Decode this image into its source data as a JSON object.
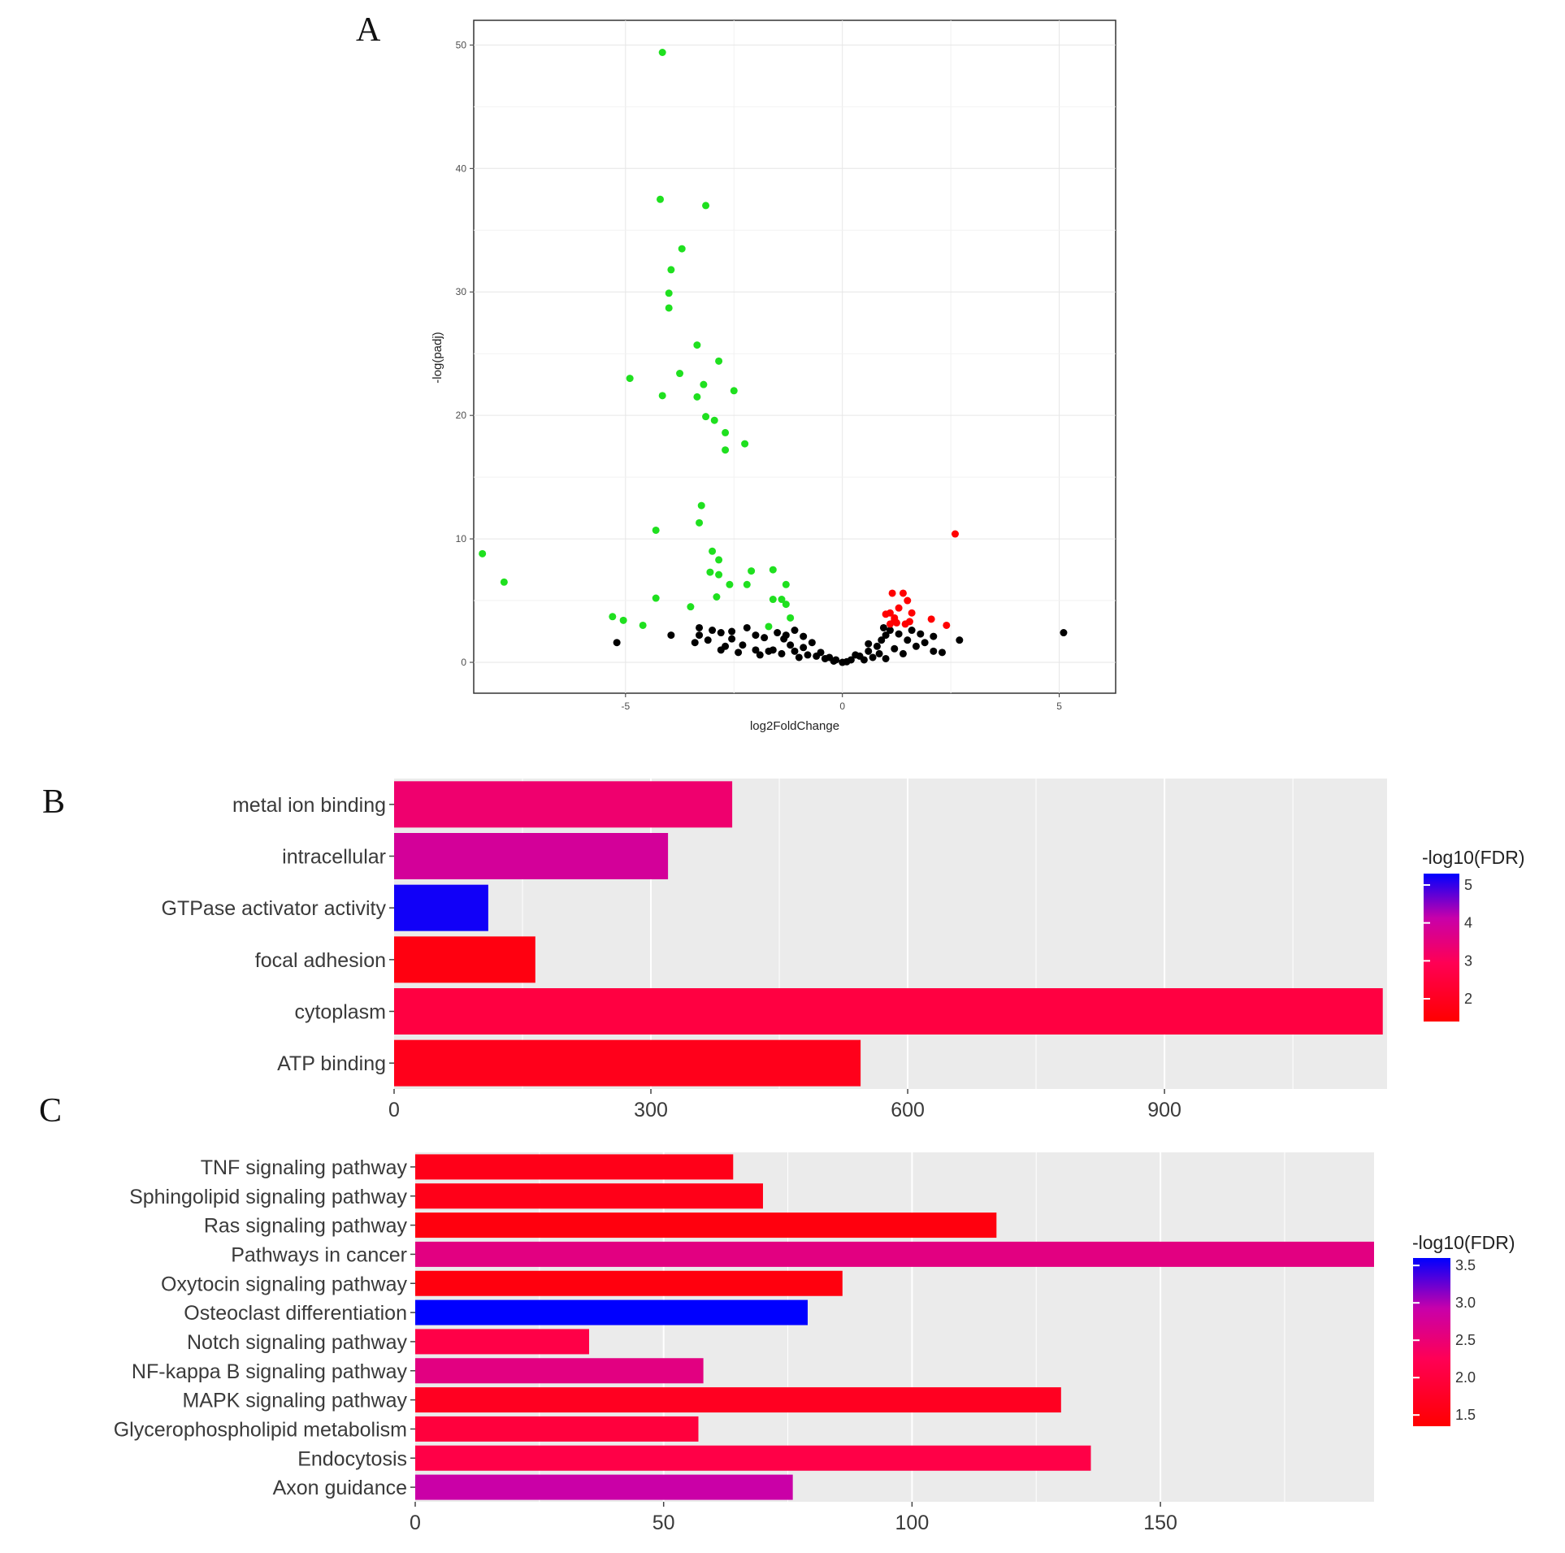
{
  "panels": {
    "a": "A",
    "b": "B",
    "c": "C"
  },
  "colors": {
    "down": "#1fe01f",
    "up": "#ff0000",
    "ns": "#000000",
    "low_fdr": "#ff0000",
    "high_fdr": "#0000ff"
  },
  "chart_data": [
    {
      "id": "volcano",
      "type": "scatter",
      "xlabel": "log2FoldChange",
      "ylabel": "-log(padj)",
      "xlim": [
        -8.5,
        6.3
      ],
      "ylim": [
        -2.5,
        52
      ],
      "xticks": [
        -5,
        0,
        5
      ],
      "yticks": [
        0,
        10,
        20,
        30,
        40,
        50
      ],
      "grid": true,
      "series": [
        {
          "group": "down",
          "color": "#1fe01f",
          "points": [
            [
              -4.15,
              49.4
            ],
            [
              -4.2,
              37.5
            ],
            [
              -3.15,
              37.0
            ],
            [
              -3.7,
              33.5
            ],
            [
              -3.95,
              31.8
            ],
            [
              -4.0,
              29.9
            ],
            [
              -4.0,
              28.7
            ],
            [
              -3.35,
              25.7
            ],
            [
              -2.85,
              24.4
            ],
            [
              -3.75,
              23.4
            ],
            [
              -4.9,
              23.0
            ],
            [
              -3.2,
              22.5
            ],
            [
              -2.5,
              22.0
            ],
            [
              -4.15,
              21.6
            ],
            [
              -3.35,
              21.5
            ],
            [
              -3.15,
              19.9
            ],
            [
              -2.95,
              19.6
            ],
            [
              -2.7,
              18.6
            ],
            [
              -2.25,
              17.7
            ],
            [
              -2.7,
              17.2
            ],
            [
              -3.25,
              12.7
            ],
            [
              -3.3,
              11.3
            ],
            [
              -4.3,
              10.7
            ],
            [
              -8.3,
              8.8
            ],
            [
              -3.0,
              9.0
            ],
            [
              -2.85,
              8.3
            ],
            [
              -2.1,
              7.4
            ],
            [
              -1.6,
              7.5
            ],
            [
              -3.05,
              7.3
            ],
            [
              -2.85,
              7.1
            ],
            [
              -7.8,
              6.5
            ],
            [
              -2.2,
              6.3
            ],
            [
              -2.6,
              6.3
            ],
            [
              -1.3,
              6.3
            ],
            [
              -4.3,
              5.2
            ],
            [
              -2.9,
              5.3
            ],
            [
              -1.6,
              5.1
            ],
            [
              -1.4,
              5.1
            ],
            [
              -1.3,
              4.7
            ],
            [
              -3.5,
              4.5
            ],
            [
              -5.3,
              3.7
            ],
            [
              -5.05,
              3.4
            ],
            [
              -1.2,
              3.6
            ],
            [
              -4.6,
              3.0
            ],
            [
              -1.7,
              2.9
            ]
          ]
        },
        {
          "group": "up",
          "color": "#ff0000",
          "points": [
            [
              2.6,
              10.4
            ],
            [
              1.15,
              5.6
            ],
            [
              1.4,
              5.6
            ],
            [
              1.5,
              5.0
            ],
            [
              1.3,
              4.4
            ],
            [
              1.1,
              4.0
            ],
            [
              1.6,
              4.0
            ],
            [
              1.0,
              3.9
            ],
            [
              1.2,
              3.6
            ],
            [
              1.2,
              3.4
            ],
            [
              1.25,
              3.2
            ],
            [
              1.55,
              3.3
            ],
            [
              2.05,
              3.5
            ],
            [
              2.4,
              3.0
            ],
            [
              1.1,
              3.1
            ],
            [
              1.45,
              3.1
            ]
          ]
        },
        {
          "group": "ns",
          "color": "#000000",
          "points": [
            [
              5.1,
              2.4
            ],
            [
              -5.2,
              1.6
            ],
            [
              -3.95,
              2.2
            ],
            [
              -3.3,
              2.8
            ],
            [
              -3.3,
              2.2
            ],
            [
              -3.4,
              1.6
            ],
            [
              -3.0,
              2.6
            ],
            [
              -2.8,
              2.4
            ],
            [
              -2.55,
              2.5
            ],
            [
              -2.2,
              2.8
            ],
            [
              -2.0,
              2.2
            ],
            [
              -1.8,
              2.0
            ],
            [
              -1.5,
              2.4
            ],
            [
              -1.3,
              2.2
            ],
            [
              -1.1,
              2.6
            ],
            [
              -0.9,
              2.1
            ],
            [
              -0.7,
              1.6
            ],
            [
              -3.1,
              1.8
            ],
            [
              -2.7,
              1.3
            ],
            [
              -2.3,
              1.4
            ],
            [
              -2.0,
              1.0
            ],
            [
              -1.7,
              0.9
            ],
            [
              -1.4,
              0.7
            ],
            [
              -1.1,
              0.9
            ],
            [
              -0.8,
              0.6
            ],
            [
              -0.6,
              0.5
            ],
            [
              -0.4,
              0.3
            ],
            [
              -0.2,
              0.1
            ],
            [
              0.0,
              0.0
            ],
            [
              0.2,
              0.2
            ],
            [
              0.4,
              0.5
            ],
            [
              0.6,
              0.9
            ],
            [
              0.8,
              1.3
            ],
            [
              0.9,
              1.8
            ],
            [
              1.0,
              2.2
            ],
            [
              1.1,
              2.6
            ],
            [
              1.3,
              2.3
            ],
            [
              1.5,
              1.8
            ],
            [
              1.7,
              1.3
            ],
            [
              1.9,
              1.6
            ],
            [
              2.1,
              0.9
            ],
            [
              2.3,
              0.8
            ],
            [
              2.7,
              1.8
            ],
            [
              2.1,
              2.1
            ],
            [
              1.6,
              2.6
            ],
            [
              1.2,
              1.1
            ],
            [
              1.4,
              0.7
            ],
            [
              0.7,
              0.4
            ],
            [
              0.5,
              0.2
            ],
            [
              -0.3,
              0.4
            ],
            [
              -0.5,
              0.8
            ],
            [
              -0.9,
              1.2
            ],
            [
              -1.2,
              1.4
            ],
            [
              -1.6,
              1.0
            ],
            [
              -1.9,
              0.6
            ],
            [
              -2.4,
              0.8
            ],
            [
              -2.8,
              1.0
            ],
            [
              -1.0,
              0.4
            ],
            [
              0.3,
              0.6
            ],
            [
              0.6,
              1.5
            ],
            [
              0.95,
              2.8
            ],
            [
              1.0,
              0.3
            ],
            [
              -0.15,
              0.2
            ],
            [
              0.1,
              0.05
            ],
            [
              -1.35,
              1.9
            ],
            [
              -2.55,
              1.9
            ],
            [
              1.8,
              2.3
            ],
            [
              0.85,
              0.7
            ]
          ]
        }
      ]
    },
    {
      "id": "go",
      "type": "bar",
      "orientation": "horizontal",
      "categories": [
        "metal ion binding",
        "intracellular",
        "GTPase activator activity",
        "focal adhesion",
        "cytoplasm",
        "ATP binding"
      ],
      "values": [
        395,
        320,
        110,
        165,
        1155,
        545
      ],
      "fdr": [
        3.3,
        3.9,
        5.2,
        1.7,
        2.6,
        1.9
      ],
      "xticks": [
        0,
        300,
        600,
        900
      ],
      "xlim": [
        0,
        1160
      ],
      "legend": {
        "title": "-log10(FDR)",
        "min": 1.4,
        "max": 5.3,
        "ticks": [
          "5",
          "4",
          "3",
          "2"
        ],
        "tick_values": [
          5,
          4,
          3,
          2
        ],
        "position": "right"
      }
    },
    {
      "id": "kegg",
      "type": "bar",
      "orientation": "horizontal",
      "categories": [
        "TNF signaling pathway",
        "Sphingolipid signaling pathway",
        "Ras signaling pathway",
        "Pathways in cancer",
        "Oxytocin signaling pathway",
        "Osteoclast differentiation",
        "Notch signaling pathway",
        "NF-kappa B signaling pathway",
        "MAPK signaling pathway",
        "Glycerophospholipid metabolism",
        "Endocytosis",
        "Axon guidance"
      ],
      "values": [
        64,
        70,
        117,
        193,
        86,
        79,
        35,
        58,
        130,
        57,
        136,
        76
      ],
      "fdr": [
        1.6,
        1.6,
        1.5,
        2.6,
        1.5,
        3.6,
        2.1,
        2.6,
        1.7,
        2.0,
        2.1,
        2.9
      ],
      "xticks": [
        0,
        50,
        100,
        150
      ],
      "xlim": [
        0,
        193
      ],
      "legend": {
        "title": "-log10(FDR)",
        "min": 1.35,
        "max": 3.6,
        "ticks": [
          "3.5",
          "3.0",
          "2.5",
          "2.0",
          "1.5"
        ],
        "tick_values": [
          3.5,
          3.0,
          2.5,
          2.0,
          1.5
        ],
        "position": "right"
      }
    }
  ]
}
